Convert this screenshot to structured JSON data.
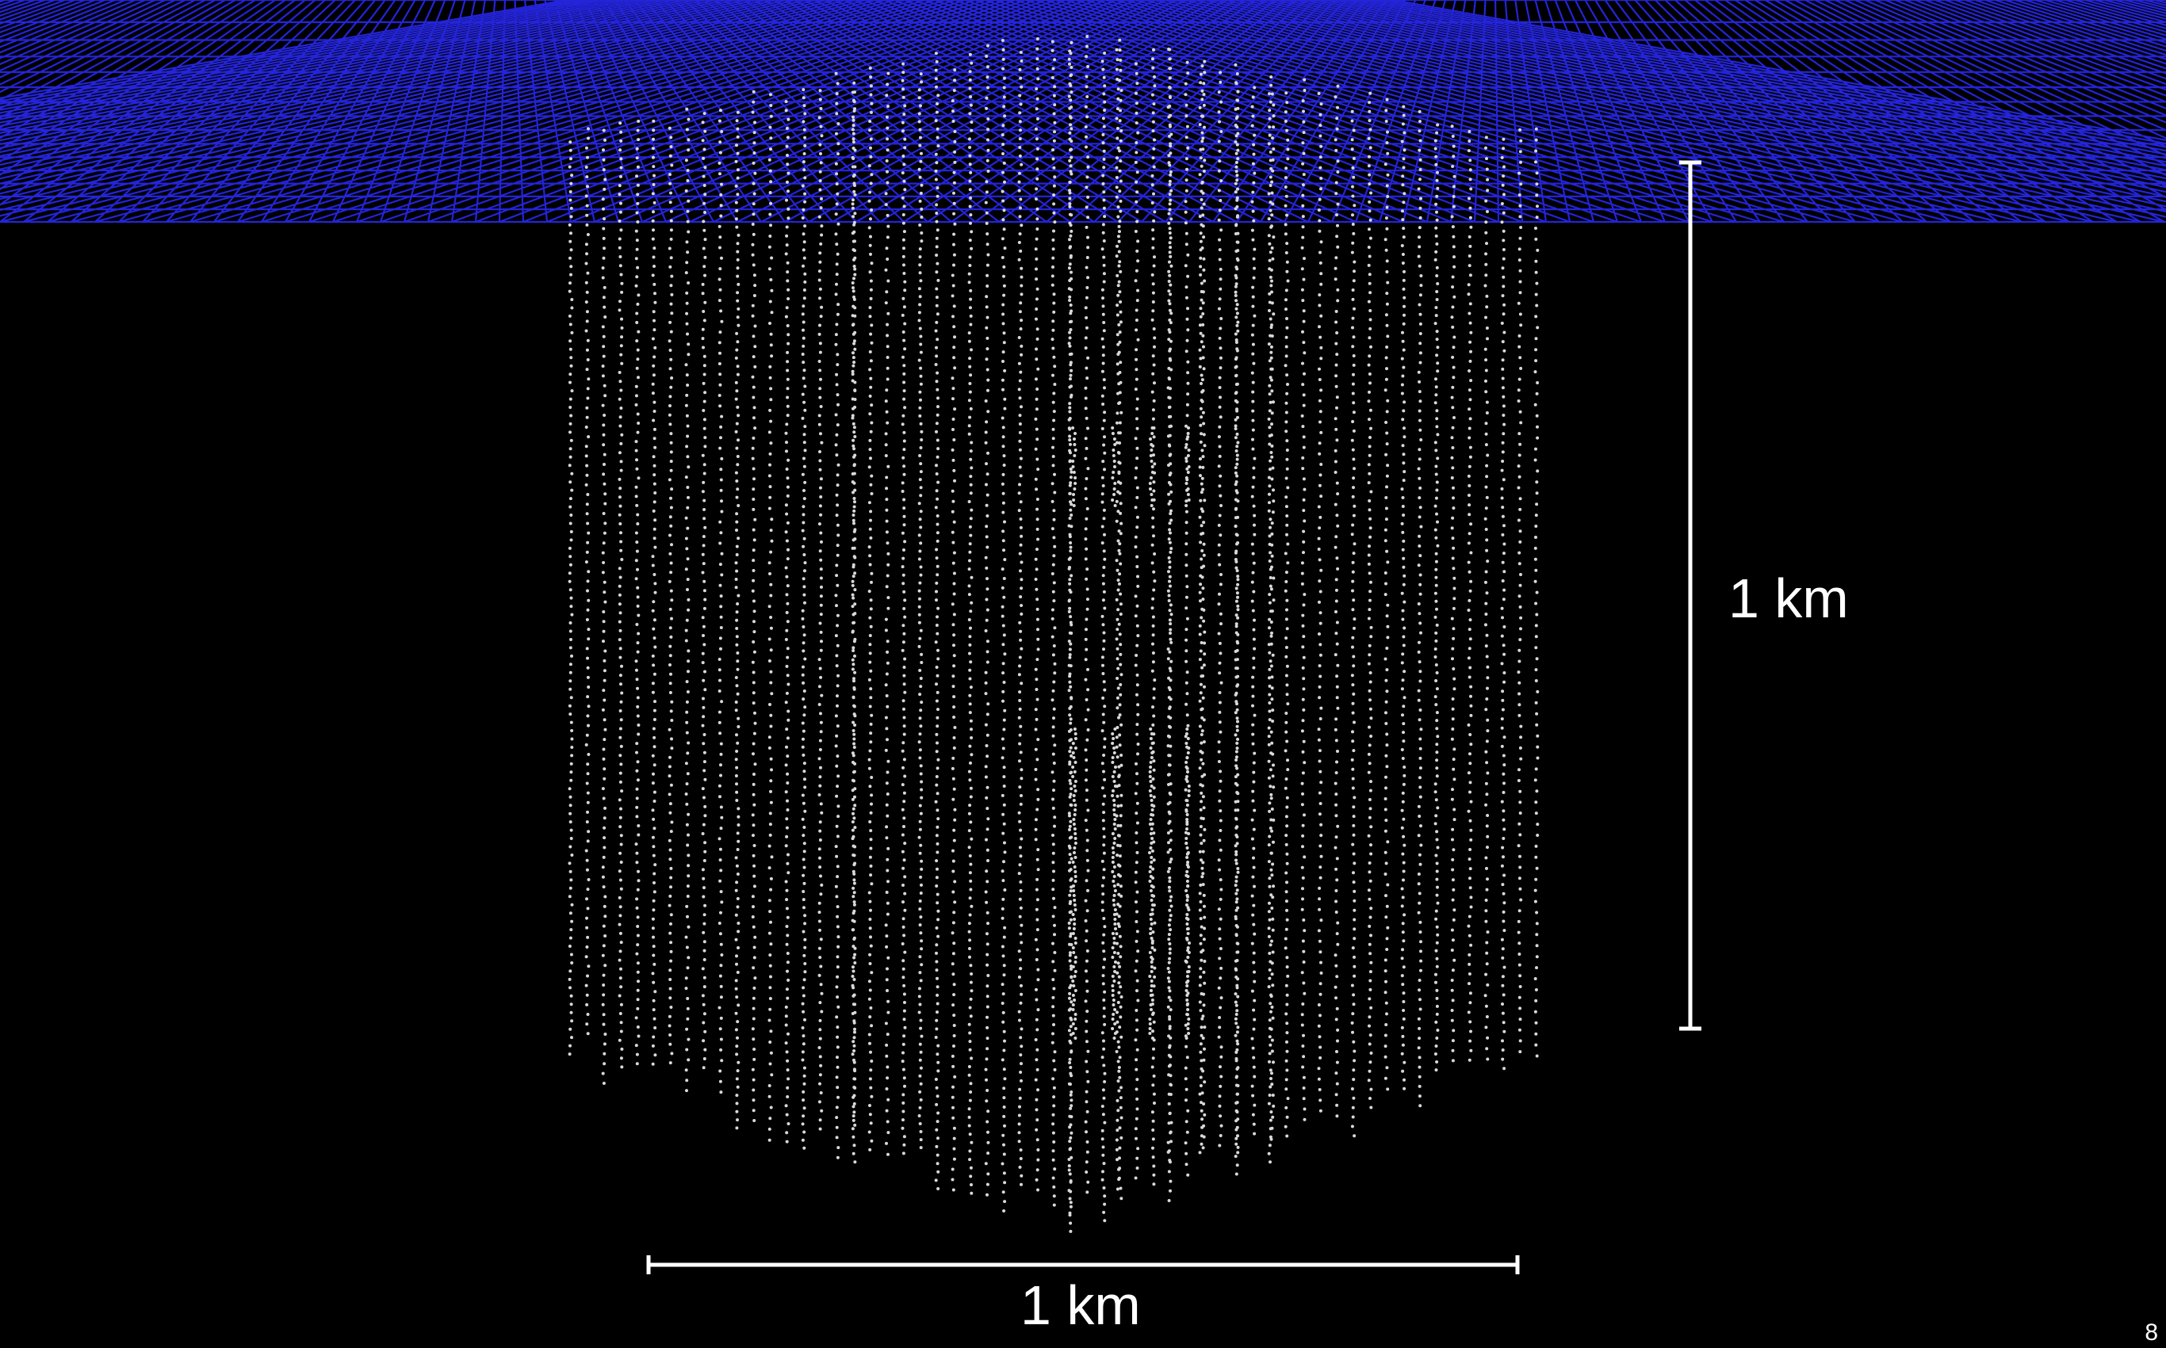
{
  "scene": {
    "background_color": "#000000",
    "surface_grid_color": "#2a2aff",
    "dom_color": "#d9d9d9"
  },
  "scale_bars": {
    "vertical_label": "1 km",
    "horizontal_label": "1 km",
    "bar_color": "#ffffff"
  },
  "page_number": "8"
}
